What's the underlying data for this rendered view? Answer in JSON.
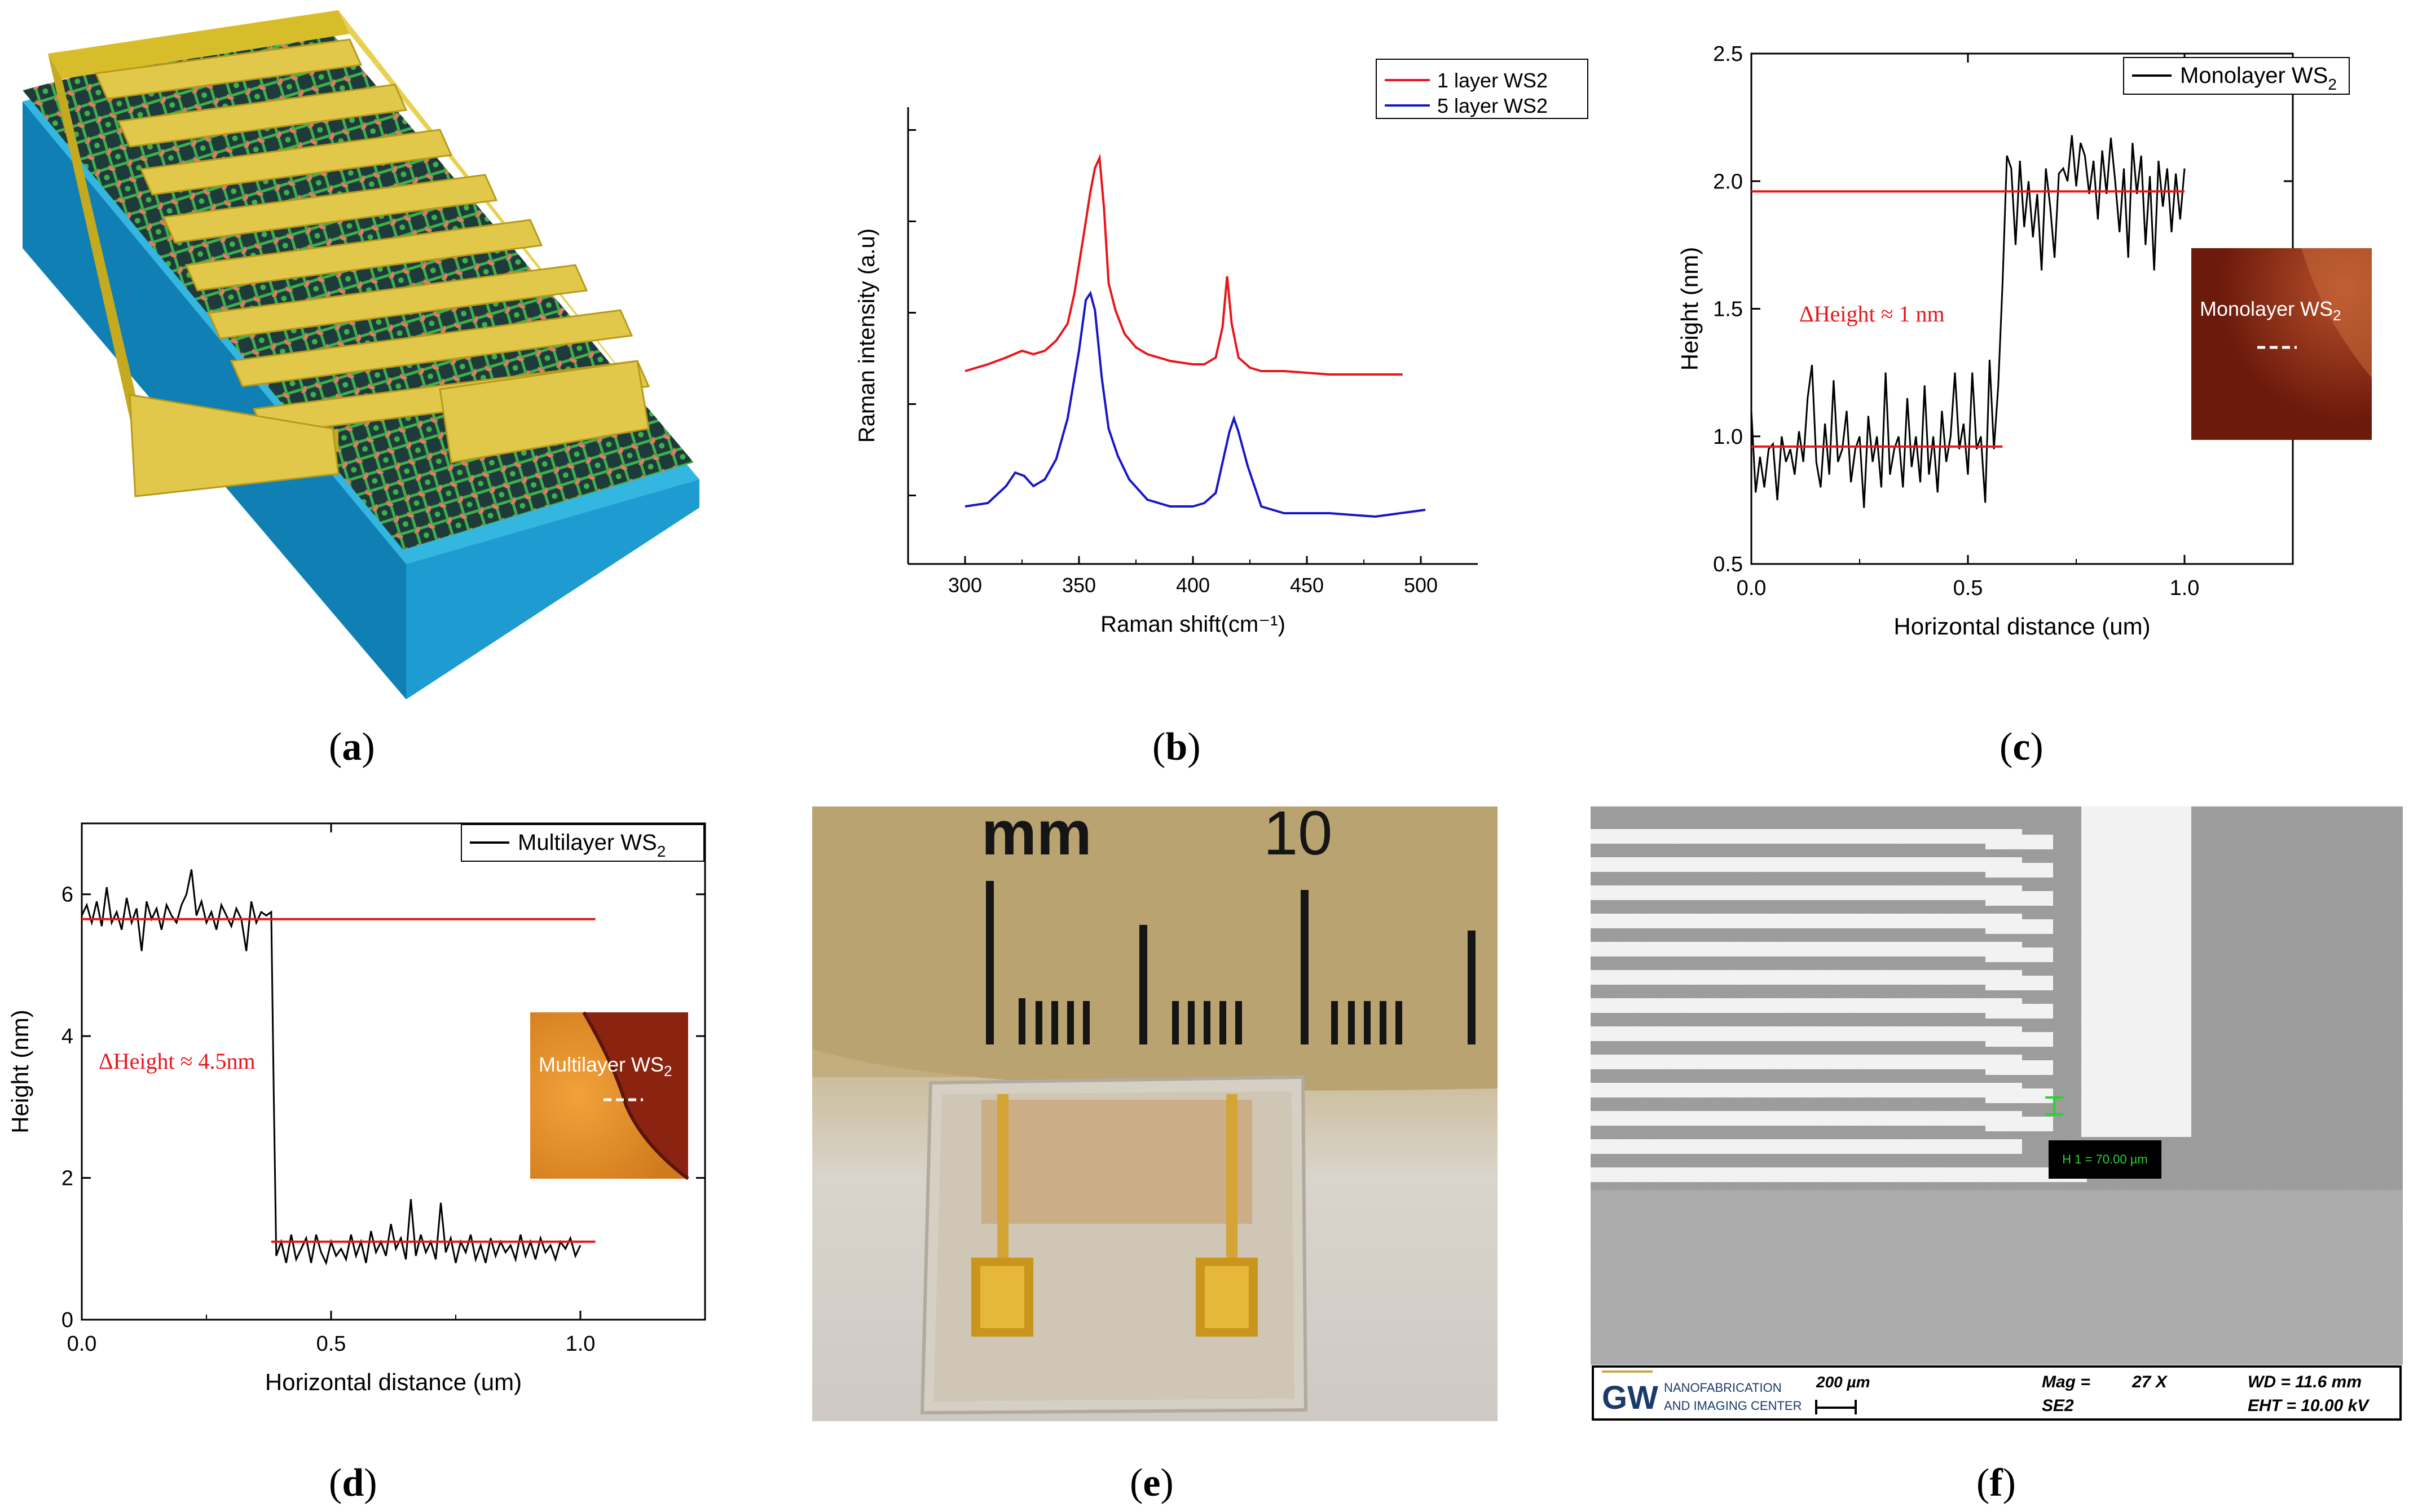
{
  "captions": {
    "a": "a",
    "b": "b",
    "c": "c",
    "d": "d",
    "e": "e",
    "f": "f"
  },
  "chart_data": [
    {
      "panel": "b",
      "type": "line",
      "xlabel": "Raman shift(cm⁻¹)",
      "ylabel": "Raman intensity (a.u)",
      "xlim": [
        275,
        525
      ],
      "xticks": [
        "300",
        "350",
        "400",
        "450",
        "500"
      ],
      "series": [
        {
          "name": "1 layer WS2",
          "color": "#e8161b",
          "x": [
            300,
            310,
            318,
            325,
            330,
            335,
            340,
            345,
            348,
            352,
            355,
            357,
            359,
            361,
            363,
            366,
            370,
            375,
            380,
            390,
            400,
            405,
            410,
            413,
            415,
            417,
            420,
            425,
            430,
            440,
            460,
            480,
            492
          ],
          "values": [
            0.32,
            0.34,
            0.36,
            0.38,
            0.37,
            0.38,
            0.41,
            0.46,
            0.55,
            0.72,
            0.85,
            0.92,
            0.95,
            0.8,
            0.58,
            0.5,
            0.43,
            0.39,
            0.37,
            0.35,
            0.34,
            0.34,
            0.36,
            0.45,
            0.6,
            0.46,
            0.36,
            0.33,
            0.32,
            0.32,
            0.31,
            0.31,
            0.31
          ]
        },
        {
          "name": "5 layer WS2",
          "color": "#1717c8",
          "x": [
            300,
            310,
            318,
            322,
            326,
            330,
            335,
            340,
            345,
            350,
            353,
            355,
            357,
            360,
            363,
            367,
            372,
            380,
            390,
            400,
            405,
            410,
            413,
            416,
            418,
            420,
            424,
            430,
            440,
            460,
            480,
            502
          ],
          "values": [
            -0.08,
            -0.07,
            -0.02,
            0.02,
            0.01,
            -0.02,
            0.0,
            0.06,
            0.18,
            0.38,
            0.53,
            0.55,
            0.5,
            0.3,
            0.15,
            0.07,
            0.0,
            -0.06,
            -0.08,
            -0.08,
            -0.07,
            -0.04,
            0.05,
            0.14,
            0.18,
            0.14,
            0.04,
            -0.08,
            -0.1,
            -0.1,
            -0.11,
            -0.09
          ]
        }
      ]
    },
    {
      "panel": "c",
      "type": "line",
      "xlabel": "Horizontal distance (um)",
      "ylabel": "Height (nm)",
      "xlim": [
        0,
        1.25
      ],
      "ylim": [
        0.5,
        2.5
      ],
      "xticks": [
        "0.0",
        "0.5",
        "1.0"
      ],
      "yticks": [
        "0.5",
        "1.0",
        "1.5",
        "2.0",
        "2.5"
      ],
      "legend": "Monolayer WS",
      "legend_sub": "2",
      "annotation": "ΔHeight ≈ 1 nm",
      "inset_label": "Monolayer WS",
      "inset_label_sub": "2",
      "ref_lines": [
        0.96,
        1.96
      ],
      "series": [
        {
          "name": "Monolayer WS2",
          "color": "#000000",
          "x": [
            0.0,
            0.01,
            0.02,
            0.03,
            0.04,
            0.05,
            0.06,
            0.07,
            0.08,
            0.09,
            0.1,
            0.11,
            0.12,
            0.13,
            0.14,
            0.15,
            0.16,
            0.17,
            0.18,
            0.19,
            0.2,
            0.21,
            0.22,
            0.23,
            0.24,
            0.25,
            0.26,
            0.27,
            0.28,
            0.29,
            0.3,
            0.31,
            0.32,
            0.33,
            0.34,
            0.35,
            0.36,
            0.37,
            0.38,
            0.39,
            0.4,
            0.41,
            0.42,
            0.43,
            0.44,
            0.45,
            0.46,
            0.47,
            0.48,
            0.49,
            0.5,
            0.51,
            0.52,
            0.53,
            0.54,
            0.55,
            0.56,
            0.57,
            0.58,
            0.59,
            0.6,
            0.61,
            0.62,
            0.63,
            0.64,
            0.65,
            0.66,
            0.67,
            0.68,
            0.69,
            0.7,
            0.71,
            0.72,
            0.73,
            0.74,
            0.75,
            0.76,
            0.77,
            0.78,
            0.79,
            0.8,
            0.81,
            0.82,
            0.83,
            0.84,
            0.85,
            0.86,
            0.87,
            0.88,
            0.89,
            0.9,
            0.91,
            0.92,
            0.93,
            0.94,
            0.95,
            0.96,
            0.97,
            0.98,
            0.99,
            1.0
          ],
          "values": [
            1.1,
            0.78,
            0.92,
            0.8,
            0.95,
            0.97,
            0.75,
            1.0,
            0.9,
            0.95,
            0.85,
            1.02,
            0.9,
            1.15,
            1.28,
            0.9,
            0.8,
            1.05,
            0.85,
            1.22,
            0.9,
            0.95,
            1.1,
            0.82,
            0.95,
            1.0,
            0.72,
            1.08,
            0.9,
            1.0,
            0.8,
            1.25,
            0.85,
            0.95,
            1.0,
            0.8,
            1.15,
            0.88,
            1.0,
            0.82,
            1.2,
            0.85,
            1.0,
            0.78,
            1.1,
            0.9,
            1.0,
            1.25,
            0.95,
            1.05,
            0.85,
            1.25,
            0.95,
            1.0,
            0.74,
            1.3,
            0.95,
            1.2,
            1.6,
            2.1,
            2.05,
            1.75,
            2.08,
            1.82,
            2.0,
            1.78,
            1.95,
            1.65,
            2.05,
            1.9,
            1.7,
            2.03,
            2.05,
            2.0,
            2.18,
            1.98,
            2.15,
            2.1,
            1.95,
            2.08,
            1.85,
            2.12,
            1.95,
            2.17,
            2.0,
            1.8,
            2.05,
            1.7,
            2.15,
            1.95,
            2.1,
            1.75,
            2.02,
            1.65,
            2.08,
            1.9,
            2.05,
            1.8,
            2.03,
            1.85,
            2.05
          ]
        }
      ]
    },
    {
      "panel": "d",
      "type": "line",
      "xlabel": "Horizontal distance (um)",
      "ylabel": "Height (nm)",
      "xlim": [
        0,
        1.25
      ],
      "ylim": [
        0,
        7
      ],
      "xticks": [
        "0.0",
        "0.5",
        "1.0"
      ],
      "yticks": [
        "0",
        "2",
        "4",
        "6"
      ],
      "legend": "Multilayer WS",
      "legend_sub": "2",
      "annotation": "ΔHeight ≈ 4.5nm",
      "inset_label": "Multilayer WS",
      "inset_label_sub": "2",
      "ref_lines": [
        5.65,
        1.1
      ],
      "series": [
        {
          "name": "Multilayer WS2",
          "color": "#000000",
          "x": [
            0.0,
            0.01,
            0.02,
            0.03,
            0.04,
            0.05,
            0.06,
            0.07,
            0.08,
            0.09,
            0.1,
            0.11,
            0.12,
            0.13,
            0.14,
            0.15,
            0.16,
            0.17,
            0.18,
            0.19,
            0.2,
            0.21,
            0.22,
            0.23,
            0.24,
            0.25,
            0.26,
            0.27,
            0.28,
            0.29,
            0.3,
            0.31,
            0.32,
            0.33,
            0.34,
            0.35,
            0.36,
            0.37,
            0.38,
            0.385,
            0.39,
            0.4,
            0.41,
            0.42,
            0.43,
            0.44,
            0.45,
            0.46,
            0.47,
            0.48,
            0.49,
            0.5,
            0.51,
            0.52,
            0.53,
            0.54,
            0.55,
            0.56,
            0.57,
            0.58,
            0.59,
            0.6,
            0.61,
            0.62,
            0.63,
            0.64,
            0.65,
            0.66,
            0.67,
            0.68,
            0.69,
            0.7,
            0.71,
            0.72,
            0.73,
            0.74,
            0.75,
            0.76,
            0.77,
            0.78,
            0.79,
            0.8,
            0.81,
            0.82,
            0.83,
            0.84,
            0.85,
            0.86,
            0.87,
            0.88,
            0.89,
            0.9,
            0.91,
            0.92,
            0.93,
            0.94,
            0.95,
            0.96,
            0.97,
            0.98,
            0.99,
            1.0
          ],
          "values": [
            5.7,
            5.85,
            5.6,
            5.9,
            5.55,
            6.1,
            5.6,
            5.75,
            5.5,
            5.95,
            5.6,
            5.8,
            5.2,
            5.9,
            5.65,
            5.8,
            5.5,
            5.85,
            5.7,
            5.6,
            5.85,
            6.0,
            6.35,
            5.7,
            5.9,
            5.6,
            5.75,
            5.5,
            5.85,
            5.7,
            5.55,
            5.8,
            5.65,
            5.2,
            5.9,
            5.6,
            5.75,
            5.7,
            5.75,
            3.2,
            0.9,
            1.1,
            0.8,
            1.2,
            0.85,
            1.0,
            1.15,
            0.8,
            1.2,
            0.95,
            0.8,
            1.1,
            0.9,
            1.0,
            0.85,
            1.2,
            0.9,
            1.1,
            0.8,
            1.25,
            0.95,
            1.1,
            0.9,
            1.35,
            1.0,
            1.15,
            0.85,
            1.7,
            0.9,
            1.2,
            0.95,
            1.1,
            0.85,
            1.65,
            0.95,
            1.15,
            0.8,
            1.1,
            0.95,
            1.2,
            0.85,
            1.05,
            0.8,
            1.15,
            0.9,
            1.1,
            0.95,
            1.05,
            0.85,
            1.2,
            0.9,
            1.1,
            0.85,
            1.15,
            0.95,
            1.05,
            0.85,
            1.1,
            1.0,
            1.15,
            0.9,
            1.05
          ]
        }
      ]
    }
  ],
  "ruler": {
    "unit": "mm",
    "mark": "10"
  },
  "sem": {
    "measure": "H 1 = 70.00 µm",
    "logo": "GW",
    "center_line1": "NANOFABRICATION",
    "center_line2": "AND IMAGING CENTER",
    "scale": "200 µm",
    "mag_label": "Mag =",
    "mag_value": "27 X",
    "detector": "SE2",
    "wd": "WD = 11.6 mm",
    "eht": "EHT = 10.00 kV"
  },
  "colors": {
    "gold": "#e2c84a",
    "red": "#e8161b",
    "blue": "#1717c8",
    "substrate": "#33b6e0"
  }
}
